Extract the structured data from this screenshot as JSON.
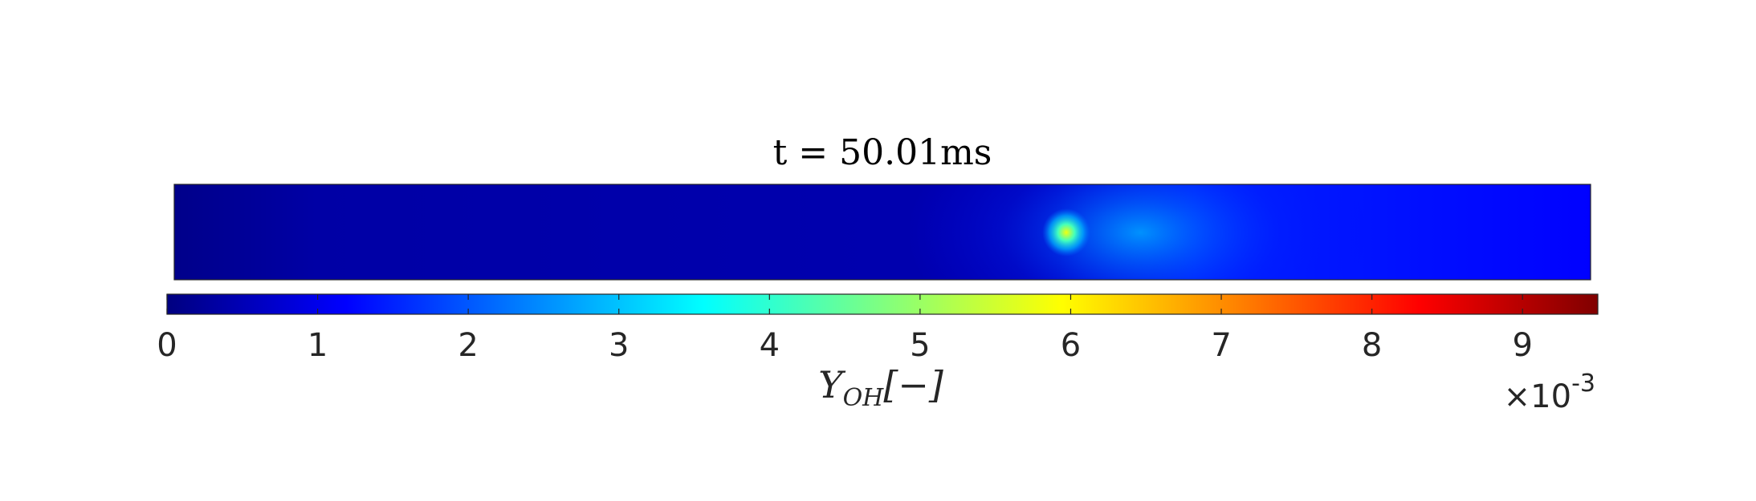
{
  "chart_data": {
    "type": "heatmap",
    "title": "t = 50.01ms",
    "colorbar": {
      "label_main": "Y",
      "label_sub": "OH",
      "label_units": "[−]",
      "ticks": [
        0,
        1,
        2,
        3,
        4,
        5,
        6,
        7,
        8,
        9
      ],
      "tick_labels": [
        "0",
        "1",
        "2",
        "3",
        "4",
        "5",
        "6",
        "7",
        "8",
        "9"
      ],
      "range": [
        0,
        9.5
      ],
      "exponent_multiplier": "×10",
      "exponent_power": "-3",
      "colormap": "jet",
      "orientation": "horizontal",
      "position": "bottom"
    },
    "field": {
      "domain_aspect": "elongated horizontal channel",
      "background_left_value": 0.1,
      "background_right_value": 1.3,
      "hot_spot": {
        "x_fraction": 0.632,
        "y_fraction": 0.5,
        "peak_value": 5.8
      },
      "plume_front_x_fraction": 0.625
    }
  }
}
